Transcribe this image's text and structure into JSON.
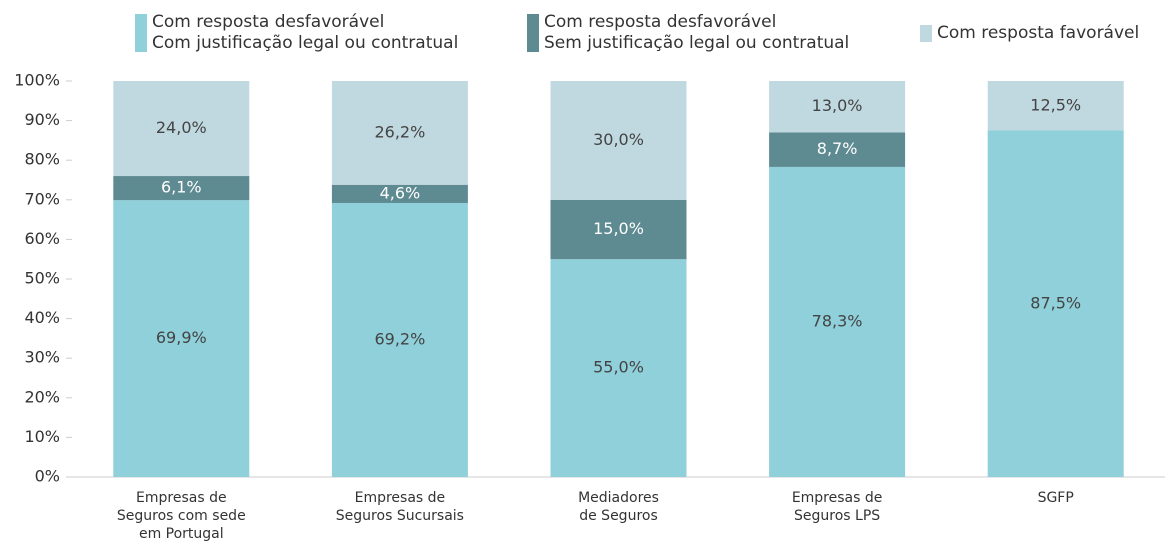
{
  "chart_data": {
    "type": "stacked_bar",
    "categories": [
      "Empresas de\nSeguros com sede\nem Portugal",
      "Empresas de\nSeguros Sucursais",
      "Mediadores\nde Seguros",
      "Empresas de\nSeguros LPS",
      "SGFP"
    ],
    "series": [
      {
        "name": "Com resposta desfavorável\nCom justificação legal ou contratual",
        "color": "#8fd0da",
        "label_color": "#444444",
        "values": [
          69.9,
          69.2,
          55.0,
          78.3,
          87.5
        ],
        "value_labels": [
          "69,9%",
          "69,2%",
          "55,0%",
          "78,3%",
          "87,5%"
        ]
      },
      {
        "name": "Com resposta desfavorável\nSem justificação legal ou contratual",
        "color": "#5e8a91",
        "label_color": "#ffffff",
        "values": [
          6.1,
          4.6,
          15.0,
          8.7,
          0
        ],
        "value_labels": [
          "6,1%",
          "4,6%",
          "15,0%",
          "8,7%",
          null
        ]
      },
      {
        "name": "Com resposta favorável",
        "color": "#c0d9e0",
        "label_color": "#444444",
        "values": [
          24.0,
          26.2,
          30.0,
          13.0,
          12.5
        ],
        "value_labels": [
          "24,0%",
          "26,2%",
          "30,0%",
          "13,0%",
          "12,5%"
        ]
      }
    ],
    "ylim": [
      0,
      100
    ],
    "yticks": [
      {
        "value": 0,
        "label": "0%"
      },
      {
        "value": 10,
        "label": "10%"
      },
      {
        "value": 20,
        "label": "20%"
      },
      {
        "value": 30,
        "label": "30%"
      },
      {
        "value": 40,
        "label": "40%"
      },
      {
        "value": 50,
        "label": "50%"
      },
      {
        "value": 60,
        "label": "60%"
      },
      {
        "value": 70,
        "label": "70%"
      },
      {
        "value": 80,
        "label": "80%"
      },
      {
        "value": 90,
        "label": "90%"
      },
      {
        "value": 100,
        "label": "100%"
      }
    ],
    "legend": "top"
  }
}
